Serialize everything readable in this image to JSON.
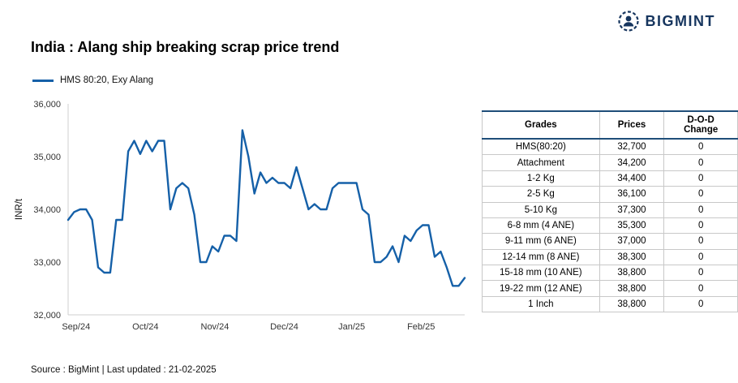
{
  "logo": {
    "text": "BIGMINT"
  },
  "title": "India : Alang ship breaking scrap price trend",
  "legend": {
    "label": "HMS 80:20, Exy Alang"
  },
  "colors": {
    "line": "#1560a8",
    "table_header_border": "#1f4e79",
    "axis": "#cfcfcf",
    "logo_navy": "#16355e"
  },
  "chart_data": {
    "type": "line",
    "title": "India : Alang ship breaking scrap price trend",
    "xlabel": "",
    "ylabel": "INR/t",
    "ylim": [
      32000,
      36000
    ],
    "yticks": [
      32000,
      33000,
      34000,
      35000,
      36000
    ],
    "x_labels": [
      "Sep/24",
      "Oct/24",
      "Nov/24",
      "Dec/24",
      "Jan/25",
      "Feb/25"
    ],
    "grid": false,
    "legend_position": "top-left",
    "series": [
      {
        "name": "HMS 80:20, Exy Alang",
        "color": "#1560a8",
        "values": [
          33800,
          33950,
          34000,
          34000,
          33800,
          32900,
          32800,
          32800,
          33800,
          33800,
          35100,
          35300,
          35050,
          35300,
          35100,
          35300,
          35300,
          34000,
          34400,
          34500,
          34400,
          33900,
          33000,
          33000,
          33300,
          33200,
          33500,
          33500,
          33400,
          35500,
          35000,
          34300,
          34700,
          34500,
          34600,
          34500,
          34500,
          34400,
          34800,
          34400,
          34000,
          34100,
          34000,
          34000,
          34400,
          34500,
          34500,
          34500,
          34500,
          34000,
          33900,
          33000,
          33000,
          33100,
          33300,
          33000,
          33500,
          33400,
          33600,
          33700,
          33700,
          33100,
          33200,
          32900,
          32550,
          32550,
          32700
        ]
      }
    ]
  },
  "table": {
    "headers": [
      "Grades",
      "Prices",
      "D-O-D Change"
    ],
    "rows": [
      [
        "HMS(80:20)",
        "32,700",
        "0"
      ],
      [
        "Attachment",
        "34,200",
        "0"
      ],
      [
        "1-2 Kg",
        "34,400",
        "0"
      ],
      [
        "2-5 Kg",
        "36,100",
        "0"
      ],
      [
        "5-10 Kg",
        "37,300",
        "0"
      ],
      [
        "6-8 mm (4 ANE)",
        "35,300",
        "0"
      ],
      [
        "9-11 mm (6 ANE)",
        "37,000",
        "0"
      ],
      [
        "12-14 mm (8 ANE)",
        "38,300",
        "0"
      ],
      [
        "15-18 mm (10 ANE)",
        "38,800",
        "0"
      ],
      [
        "19-22 mm (12 ANE)",
        "38,800",
        "0"
      ],
      [
        "1 Inch",
        "38,800",
        "0"
      ]
    ]
  },
  "footer": {
    "source": "Source : BigMint | Last updated : 21-02-2025"
  }
}
